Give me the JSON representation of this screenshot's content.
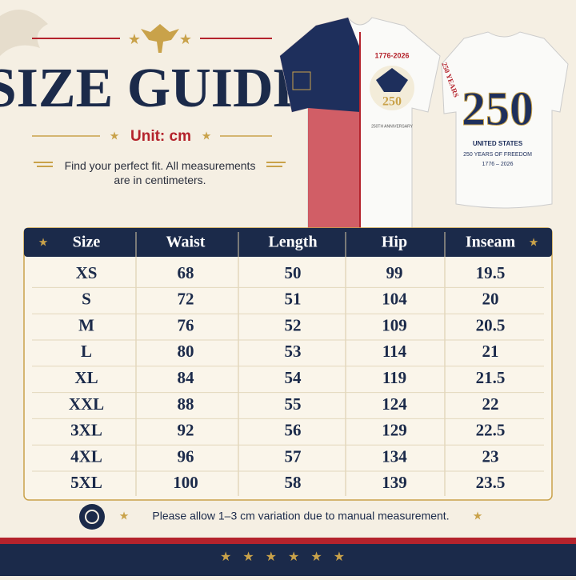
{
  "header": {
    "title": "SIZE GUIDE",
    "unit": "Unit: cm",
    "description": "Find your perfect fit. All measurements are in centimeters."
  },
  "jersey": {
    "front_badge_years": "1776-2026",
    "front_badge_number": "250",
    "front_caption": "250TH ANNIVERSARY",
    "back_side_text": "250 YEARS",
    "back_number": "250",
    "back_line1": "UNITED STATES",
    "back_line2": "250 YEARS OF FREEDOM",
    "back_line3": "1776 – 2026"
  },
  "table": {
    "columns": [
      "Size",
      "Waist",
      "Length",
      "Hip",
      "Inseam"
    ],
    "rows": [
      [
        "XS",
        "68",
        "50",
        "99",
        "19.5"
      ],
      [
        "S",
        "72",
        "51",
        "104",
        "20"
      ],
      [
        "M",
        "76",
        "52",
        "109",
        "20.5"
      ],
      [
        "L",
        "80",
        "53",
        "114",
        "21"
      ],
      [
        "XL",
        "84",
        "54",
        "119",
        "21.5"
      ],
      [
        "XXL",
        "88",
        "55",
        "124",
        "22"
      ],
      [
        "3XL",
        "92",
        "56",
        "129",
        "22.5"
      ],
      [
        "4XL",
        "96",
        "57",
        "134",
        "23"
      ],
      [
        "5XL",
        "100",
        "58",
        "139",
        "23.5"
      ]
    ]
  },
  "footer": {
    "note": "Please allow 1–3 cm variation due to manual measurement."
  }
}
